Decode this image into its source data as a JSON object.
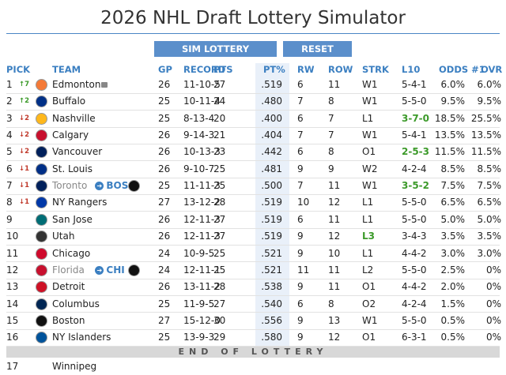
{
  "header": {
    "title": "2026 NHL Draft Lottery Simulator",
    "buttons": [
      "SIM LOTTERY",
      "RESET"
    ]
  },
  "table": {
    "columns": [
      "PICK",
      "TEAM",
      "GP",
      "RECORD",
      "PTS",
      "PT%",
      "RW",
      "ROW",
      "STRK",
      "L10",
      "ODDS #1",
      "OVR"
    ],
    "rows": [
      {
        "pick": "1",
        "move": "7",
        "move_dir": "up",
        "team": "Edmonton",
        "locked": true,
        "logo_color": "#f47a38",
        "gp": "26",
        "record": "11-10-5",
        "pts": "27",
        "pct": ".519",
        "rw": "6",
        "row": "11",
        "strk": "W1",
        "l10": "5-4-1",
        "odds": "6.0%",
        "ovr": "6.0%"
      },
      {
        "pick": "2",
        "move": "2",
        "move_dir": "up",
        "team": "Buffalo",
        "logo_color": "#003087",
        "gp": "25",
        "record": "10-11-4",
        "pts": "24",
        "pct": ".480",
        "rw": "7",
        "row": "8",
        "strk": "W1",
        "l10": "5-5-0",
        "odds": "9.5%",
        "ovr": "9.5%"
      },
      {
        "pick": "3",
        "move": "2",
        "move_dir": "down",
        "team": "Nashville",
        "logo_color": "#ffb81c",
        "gp": "25",
        "record": "8-13-4",
        "pts": "20",
        "pct": ".400",
        "rw": "6",
        "row": "7",
        "strk": "L1",
        "l10": "3-7-0",
        "highlight": "l10",
        "odds": "18.5%",
        "ovr": "25.5%"
      },
      {
        "pick": "4",
        "move": "2",
        "move_dir": "down",
        "team": "Calgary",
        "logo_color": "#c8102e",
        "gp": "26",
        "record": "9-14-3",
        "pts": "21",
        "pct": ".404",
        "rw": "7",
        "row": "7",
        "strk": "W1",
        "l10": "5-4-1",
        "odds": "13.5%",
        "ovr": "13.5%"
      },
      {
        "pick": "5",
        "move": "2",
        "move_dir": "down",
        "team": "Vancouver",
        "logo_color": "#00205b",
        "gp": "26",
        "record": "10-13-3",
        "pts": "23",
        "pct": ".442",
        "rw": "6",
        "row": "8",
        "strk": "O1",
        "l10": "2-5-3",
        "highlight": "l10",
        "odds": "11.5%",
        "ovr": "11.5%"
      },
      {
        "pick": "6",
        "move": "1",
        "move_dir": "down",
        "team": "St. Louis",
        "logo_color": "#002f87",
        "gp": "26",
        "record": "9-10-7",
        "pts": "25",
        "pct": ".481",
        "rw": "9",
        "row": "9",
        "strk": "W2",
        "l10": "4-2-4",
        "odds": "8.5%",
        "ovr": "8.5%"
      },
      {
        "pick": "7",
        "move": "1",
        "move_dir": "down",
        "team": "Toronto",
        "to": "BOS",
        "logo_color": "#00205b",
        "gp": "25",
        "record": "11-11-3",
        "pts": "25",
        "pct": ".500",
        "rw": "7",
        "row": "11",
        "strk": "W1",
        "l10": "3-5-2",
        "highlight": "l10",
        "odds": "7.5%",
        "ovr": "7.5%"
      },
      {
        "pick": "8",
        "move": "1",
        "move_dir": "down",
        "team": "NY Rangers",
        "logo_color": "#0038a8",
        "gp": "27",
        "record": "13-12-2",
        "pts": "28",
        "pct": ".519",
        "rw": "10",
        "row": "12",
        "strk": "L1",
        "l10": "5-5-0",
        "odds": "6.5%",
        "ovr": "6.5%"
      },
      {
        "pick": "9",
        "team": "San Jose",
        "logo_color": "#006d75",
        "gp": "26",
        "record": "12-11-3",
        "pts": "27",
        "pct": ".519",
        "rw": "6",
        "row": "11",
        "strk": "L1",
        "l10": "5-5-0",
        "odds": "5.0%",
        "ovr": "5.0%"
      },
      {
        "pick": "10",
        "team": "Utah",
        "logo_color": "#333333",
        "gp": "26",
        "record": "12-11-3",
        "pts": "27",
        "pct": ".519",
        "rw": "9",
        "row": "12",
        "strk": "L3",
        "highlight": "strk",
        "l10": "3-4-3",
        "odds": "3.5%",
        "ovr": "3.5%"
      },
      {
        "pick": "11",
        "team": "Chicago",
        "logo_color": "#cf0a2c",
        "gp": "24",
        "record": "10-9-5",
        "pts": "25",
        "pct": ".521",
        "rw": "9",
        "row": "10",
        "strk": "L1",
        "l10": "4-4-2",
        "odds": "3.0%",
        "ovr": "3.0%"
      },
      {
        "pick": "12",
        "team": "Florida",
        "to": "CHI",
        "logo_color": "#c8102e",
        "gp": "24",
        "record": "12-11-1",
        "pts": "25",
        "pct": ".521",
        "rw": "11",
        "row": "11",
        "strk": "L2",
        "l10": "5-5-0",
        "odds": "2.5%",
        "ovr": "0%"
      },
      {
        "pick": "13",
        "team": "Detroit",
        "logo_color": "#ce1126",
        "gp": "26",
        "record": "13-11-2",
        "pts": "28",
        "pct": ".538",
        "rw": "9",
        "row": "11",
        "strk": "O1",
        "l10": "4-4-2",
        "odds": "2.0%",
        "ovr": "0%"
      },
      {
        "pick": "14",
        "team": "Columbus",
        "logo_color": "#002654",
        "gp": "25",
        "record": "11-9-5",
        "pts": "27",
        "pct": ".540",
        "rw": "6",
        "row": "8",
        "strk": "O2",
        "l10": "4-2-4",
        "odds": "1.5%",
        "ovr": "0%"
      },
      {
        "pick": "15",
        "team": "Boston",
        "logo_color": "#111111",
        "gp": "27",
        "record": "15-12-0",
        "pts": "30",
        "pct": ".556",
        "rw": "9",
        "row": "13",
        "strk": "W1",
        "l10": "5-5-0",
        "odds": "0.5%",
        "ovr": "0%"
      },
      {
        "pick": "16",
        "team": "NY Islanders",
        "logo_color": "#00539b",
        "gp": "25",
        "record": "13-9-3",
        "pts": "29",
        "pct": ".580",
        "rw": "9",
        "row": "12",
        "strk": "O1",
        "l10": "6-3-1",
        "odds": "0.5%",
        "ovr": "0%"
      }
    ],
    "separator": "END OF LOTTERY",
    "next_row": {
      "pick": "17",
      "team": "Winnipeg"
    }
  }
}
